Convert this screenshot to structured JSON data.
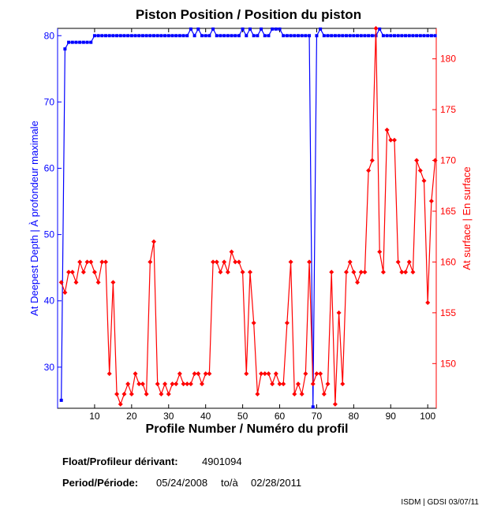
{
  "chart_data": {
    "type": "line",
    "title": "Piston Position / Position du piston",
    "xlabel": "Profile Number / Numéro du profil",
    "ylabel_left": "At Deepest Depth | À profondeur maximale",
    "ylabel_right": "At surface | En surface",
    "xlim": [
      0,
      102.3
    ],
    "ylim_left": [
      23.8,
      81.1
    ],
    "ylim_right": [
      145.6,
      183
    ],
    "x_ticks": [
      10,
      20,
      30,
      40,
      50,
      60,
      70,
      80,
      90,
      100
    ],
    "y_ticks_left": [
      30,
      40,
      50,
      60,
      70,
      80
    ],
    "y_ticks_right": [
      150,
      155,
      160,
      165,
      170,
      175,
      180
    ],
    "grid": false,
    "series": [
      {
        "name": "At Deepest Depth | À profondeur maximale",
        "axis": "left",
        "color": "#0000ff",
        "values": [
          25,
          78,
          79,
          79,
          79,
          79,
          79,
          79,
          79,
          80,
          80,
          80,
          80,
          80,
          80,
          80,
          80,
          80,
          80,
          80,
          80,
          80,
          80,
          80,
          80,
          80,
          80,
          80,
          80,
          80,
          80,
          80,
          80,
          80,
          80,
          81,
          80,
          81,
          80,
          80,
          80,
          81,
          80,
          80,
          80,
          80,
          80,
          80,
          80,
          81,
          80,
          81,
          80,
          80,
          81,
          80,
          80,
          81,
          81,
          81,
          80,
          80,
          80,
          80,
          80,
          80,
          80,
          80,
          24,
          80,
          81,
          80,
          80,
          80,
          80,
          80,
          80,
          80,
          80,
          80,
          80,
          80,
          80,
          80,
          80,
          80,
          81,
          80,
          80,
          80,
          80,
          80,
          80,
          80,
          80,
          80,
          80,
          80,
          80,
          80,
          80,
          80
        ]
      },
      {
        "name": "At surface | En surface",
        "axis": "right",
        "color": "#ff0000",
        "values": [
          158,
          157,
          159,
          159,
          158,
          160,
          159,
          160,
          160,
          159,
          158,
          160,
          160,
          149,
          158,
          147,
          146,
          147,
          148,
          147,
          149,
          148,
          148,
          147,
          160,
          162,
          148,
          147,
          148,
          147,
          148,
          148,
          149,
          148,
          148,
          148,
          149,
          149,
          148,
          149,
          149,
          160,
          160,
          159,
          160,
          159,
          161,
          160,
          160,
          159,
          149,
          159,
          154,
          147,
          149,
          149,
          149,
          148,
          149,
          148,
          148,
          154,
          160,
          147,
          148,
          147,
          149,
          160,
          148,
          149,
          149,
          147,
          148,
          159,
          146,
          155,
          148,
          159,
          160,
          159,
          158,
          159,
          159,
          169,
          170,
          183,
          161,
          159,
          173,
          172,
          172,
          160,
          159,
          159,
          160,
          159,
          170,
          169,
          168,
          156,
          166,
          170
        ]
      }
    ]
  },
  "info": {
    "float_label": "Float/Profileur dérivant:",
    "float_value": "4901094",
    "period_label": "Period/Période:",
    "period_start": "05/24/2008",
    "period_sep": "to/à",
    "period_end": "02/28/2011",
    "footer": "ISDM | GDSI 03/07/11"
  }
}
